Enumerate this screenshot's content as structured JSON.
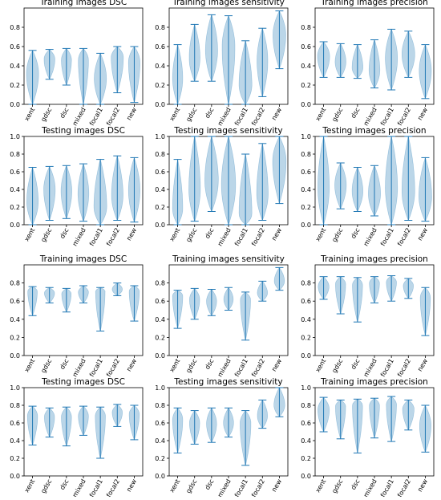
{
  "style": {
    "violin_fill": "#1f77b4",
    "violin_fill_opacity": 0.3,
    "line_color": "#1f77b4",
    "axis_color": "#000000"
  },
  "chart_data": [
    {
      "type": "violin",
      "title": "Training images DSC",
      "ylim": [
        0,
        1
      ],
      "ytick_labels": [
        "0.0",
        "0.2",
        "0.4",
        "0.6",
        "0.8"
      ],
      "categories": [
        "xent",
        "gdsc",
        "dsc",
        "mixed",
        "focal1",
        "focal2",
        "new"
      ],
      "series": [
        {
          "min": 0.0,
          "max": 0.56,
          "mode": 0.32,
          "width": 0.36
        },
        {
          "min": 0.26,
          "max": 0.57,
          "mode": 0.47,
          "width": 0.32
        },
        {
          "min": 0.2,
          "max": 0.58,
          "mode": 0.46,
          "width": 0.3
        },
        {
          "min": 0.0,
          "max": 0.58,
          "mode": 0.46,
          "width": 0.3
        },
        {
          "min": 0.0,
          "max": 0.53,
          "mode": 0.27,
          "width": 0.36
        },
        {
          "min": 0.12,
          "max": 0.6,
          "mode": 0.49,
          "width": 0.36
        },
        {
          "min": 0.02,
          "max": 0.6,
          "mode": 0.44,
          "width": 0.34
        }
      ]
    },
    {
      "type": "violin",
      "title": "Training images sensitivity",
      "ylim": [
        0,
        1
      ],
      "ytick_labels": [
        "0.0",
        "0.2",
        "0.4",
        "0.6",
        "0.8"
      ],
      "categories": [
        "xent",
        "gdsc",
        "dsc",
        "mixed",
        "focal1",
        "focal2",
        "new"
      ],
      "series": [
        {
          "min": 0.0,
          "max": 0.62,
          "mode": 0.27,
          "width": 0.3
        },
        {
          "min": 0.24,
          "max": 0.83,
          "mode": 0.48,
          "width": 0.32
        },
        {
          "min": 0.24,
          "max": 0.93,
          "mode": 0.56,
          "width": 0.36
        },
        {
          "min": 0.0,
          "max": 0.92,
          "mode": 0.6,
          "width": 0.38
        },
        {
          "min": 0.0,
          "max": 0.66,
          "mode": 0.2,
          "width": 0.38
        },
        {
          "min": 0.08,
          "max": 0.79,
          "mode": 0.45,
          "width": 0.32
        },
        {
          "min": 0.37,
          "max": 0.97,
          "mode": 0.72,
          "width": 0.38
        }
      ]
    },
    {
      "type": "violin",
      "title": "Training images precision",
      "ylim": [
        0,
        1
      ],
      "ytick_labels": [
        "0.0",
        "0.2",
        "0.4",
        "0.6",
        "0.8"
      ],
      "categories": [
        "xent",
        "gdsc",
        "dsc",
        "mixed",
        "focal1",
        "focal2",
        "new"
      ],
      "series": [
        {
          "min": 0.28,
          "max": 0.65,
          "mode": 0.5,
          "width": 0.36
        },
        {
          "min": 0.28,
          "max": 0.63,
          "mode": 0.44,
          "width": 0.32
        },
        {
          "min": 0.27,
          "max": 0.62,
          "mode": 0.38,
          "width": 0.32
        },
        {
          "min": 0.17,
          "max": 0.67,
          "mode": 0.35,
          "width": 0.32
        },
        {
          "min": 0.15,
          "max": 0.78,
          "mode": 0.48,
          "width": 0.36
        },
        {
          "min": 0.28,
          "max": 0.76,
          "mode": 0.52,
          "width": 0.38
        },
        {
          "min": 0.06,
          "max": 0.62,
          "mode": 0.35,
          "width": 0.36
        }
      ]
    },
    {
      "type": "violin",
      "title": "Testing images DSC",
      "ylim": [
        0,
        1
      ],
      "ytick_labels": [
        "0.0",
        "0.2",
        "0.4",
        "0.6",
        "0.8",
        "1.0"
      ],
      "categories": [
        "xent",
        "gdsc",
        "dsc",
        "mixed",
        "focal1",
        "focal2",
        "new"
      ],
      "series": [
        {
          "min": 0.0,
          "max": 0.65,
          "mode": 0.26,
          "width": 0.34
        },
        {
          "min": 0.05,
          "max": 0.66,
          "mode": 0.4,
          "width": 0.34
        },
        {
          "min": 0.07,
          "max": 0.67,
          "mode": 0.38,
          "width": 0.32
        },
        {
          "min": 0.04,
          "max": 0.69,
          "mode": 0.35,
          "width": 0.32
        },
        {
          "min": 0.0,
          "max": 0.74,
          "mode": 0.2,
          "width": 0.38
        },
        {
          "min": 0.05,
          "max": 0.78,
          "mode": 0.33,
          "width": 0.34
        },
        {
          "min": 0.03,
          "max": 0.76,
          "mode": 0.39,
          "width": 0.34
        }
      ]
    },
    {
      "type": "violin",
      "title": "Testing images sensitivity",
      "ylim": [
        0,
        1
      ],
      "ytick_labels": [
        "0.0",
        "0.2",
        "0.4",
        "0.6",
        "0.8",
        "1.0"
      ],
      "categories": [
        "xent",
        "gdsc",
        "dsc",
        "mixed",
        "focal1",
        "focal2",
        "new"
      ],
      "series": [
        {
          "min": 0.0,
          "max": 0.74,
          "mode": 0.18,
          "width": 0.3
        },
        {
          "min": 0.04,
          "max": 1.0,
          "mode": 0.4,
          "width": 0.34
        },
        {
          "min": 0.15,
          "max": 1.0,
          "mode": 0.5,
          "width": 0.4
        },
        {
          "min": 0.0,
          "max": 1.0,
          "mode": 0.45,
          "width": 0.42
        },
        {
          "min": 0.0,
          "max": 0.8,
          "mode": 0.12,
          "width": 0.38
        },
        {
          "min": 0.05,
          "max": 0.92,
          "mode": 0.35,
          "width": 0.34
        },
        {
          "min": 0.24,
          "max": 1.0,
          "mode": 0.72,
          "width": 0.4
        }
      ]
    },
    {
      "type": "violin",
      "title": "Testing images precision",
      "ylim": [
        0,
        1
      ],
      "ytick_labels": [
        "0.0",
        "0.2",
        "0.4",
        "0.6",
        "0.8",
        "1.0"
      ],
      "categories": [
        "xent",
        "gdsc",
        "dsc",
        "mixed",
        "focal1",
        "focal2",
        "new"
      ],
      "series": [
        {
          "min": 0.0,
          "max": 1.0,
          "mode": 0.42,
          "width": 0.34
        },
        {
          "min": 0.18,
          "max": 0.7,
          "mode": 0.45,
          "width": 0.34
        },
        {
          "min": 0.15,
          "max": 0.65,
          "mode": 0.38,
          "width": 0.32
        },
        {
          "min": 0.1,
          "max": 0.67,
          "mode": 0.35,
          "width": 0.36
        },
        {
          "min": 0.0,
          "max": 1.0,
          "mode": 0.42,
          "width": 0.36
        },
        {
          "min": 0.05,
          "max": 1.0,
          "mode": 0.38,
          "width": 0.38
        },
        {
          "min": 0.04,
          "max": 0.76,
          "mode": 0.32,
          "width": 0.38
        }
      ]
    },
    {
      "type": "violin",
      "title": "Training images DSC",
      "ylim": [
        0,
        1
      ],
      "ytick_labels": [
        "0.0",
        "0.2",
        "0.4",
        "0.6",
        "0.8"
      ],
      "categories": [
        "xent",
        "gdsc",
        "dsc",
        "mixed",
        "focal1",
        "focal2",
        "new"
      ],
      "series": [
        {
          "min": 0.44,
          "max": 0.76,
          "mode": 0.71,
          "width": 0.28
        },
        {
          "min": 0.58,
          "max": 0.75,
          "mode": 0.69,
          "width": 0.3
        },
        {
          "min": 0.48,
          "max": 0.74,
          "mode": 0.68,
          "width": 0.28
        },
        {
          "min": 0.58,
          "max": 0.77,
          "mode": 0.7,
          "width": 0.3
        },
        {
          "min": 0.27,
          "max": 0.75,
          "mode": 0.71,
          "width": 0.28
        },
        {
          "min": 0.66,
          "max": 0.8,
          "mode": 0.73,
          "width": 0.3
        },
        {
          "min": 0.38,
          "max": 0.77,
          "mode": 0.71,
          "width": 0.3
        }
      ]
    },
    {
      "type": "violin",
      "title": "Training images sensitivity",
      "ylim": [
        0,
        1
      ],
      "ytick_labels": [
        "0.0",
        "0.2",
        "0.4",
        "0.6",
        "0.8"
      ],
      "categories": [
        "xent",
        "gdsc",
        "dsc",
        "mixed",
        "focal1",
        "focal2",
        "new"
      ],
      "series": [
        {
          "min": 0.3,
          "max": 0.72,
          "mode": 0.66,
          "width": 0.3
        },
        {
          "min": 0.4,
          "max": 0.74,
          "mode": 0.62,
          "width": 0.3
        },
        {
          "min": 0.44,
          "max": 0.73,
          "mode": 0.6,
          "width": 0.3
        },
        {
          "min": 0.5,
          "max": 0.75,
          "mode": 0.62,
          "width": 0.28
        },
        {
          "min": 0.17,
          "max": 0.7,
          "mode": 0.62,
          "width": 0.3
        },
        {
          "min": 0.6,
          "max": 0.82,
          "mode": 0.69,
          "width": 0.3
        },
        {
          "min": 0.72,
          "max": 0.97,
          "mode": 0.82,
          "width": 0.3
        }
      ]
    },
    {
      "type": "violin",
      "title": "Training images precision",
      "ylim": [
        0,
        1
      ],
      "ytick_labels": [
        "0.0",
        "0.2",
        "0.4",
        "0.6",
        "0.8"
      ],
      "categories": [
        "xent",
        "gdsc",
        "dsc",
        "mixed",
        "focal1",
        "focal2",
        "new"
      ],
      "series": [
        {
          "min": 0.62,
          "max": 0.87,
          "mode": 0.76,
          "width": 0.32
        },
        {
          "min": 0.46,
          "max": 0.87,
          "mode": 0.79,
          "width": 0.3
        },
        {
          "min": 0.37,
          "max": 0.86,
          "mode": 0.78,
          "width": 0.3
        },
        {
          "min": 0.58,
          "max": 0.87,
          "mode": 0.8,
          "width": 0.3
        },
        {
          "min": 0.6,
          "max": 0.88,
          "mode": 0.81,
          "width": 0.3
        },
        {
          "min": 0.63,
          "max": 0.85,
          "mode": 0.77,
          "width": 0.3
        },
        {
          "min": 0.22,
          "max": 0.75,
          "mode": 0.64,
          "width": 0.3
        }
      ]
    },
    {
      "type": "violin",
      "title": "Testing images DSC",
      "ylim": [
        0,
        1
      ],
      "ytick_labels": [
        "0.0",
        "0.2",
        "0.4",
        "0.6",
        "0.8",
        "1.0"
      ],
      "categories": [
        "xent",
        "gdsc",
        "dsc",
        "mixed",
        "focal1",
        "focal2",
        "new"
      ],
      "series": [
        {
          "min": 0.35,
          "max": 0.79,
          "mode": 0.68,
          "width": 0.3
        },
        {
          "min": 0.44,
          "max": 0.77,
          "mode": 0.67,
          "width": 0.3
        },
        {
          "min": 0.34,
          "max": 0.78,
          "mode": 0.67,
          "width": 0.3
        },
        {
          "min": 0.46,
          "max": 0.79,
          "mode": 0.68,
          "width": 0.3
        },
        {
          "min": 0.2,
          "max": 0.78,
          "mode": 0.68,
          "width": 0.3
        },
        {
          "min": 0.56,
          "max": 0.81,
          "mode": 0.72,
          "width": 0.3
        },
        {
          "min": 0.41,
          "max": 0.8,
          "mode": 0.7,
          "width": 0.3
        }
      ]
    },
    {
      "type": "violin",
      "title": "Testing images sensitivity",
      "ylim": [
        0,
        1
      ],
      "ytick_labels": [
        "0.0",
        "0.2",
        "0.4",
        "0.6",
        "0.8",
        "1.0"
      ],
      "categories": [
        "xent",
        "gdsc",
        "dsc",
        "mixed",
        "focal1",
        "focal2",
        "new"
      ],
      "series": [
        {
          "min": 0.26,
          "max": 0.77,
          "mode": 0.64,
          "width": 0.3
        },
        {
          "min": 0.36,
          "max": 0.74,
          "mode": 0.6,
          "width": 0.3
        },
        {
          "min": 0.38,
          "max": 0.77,
          "mode": 0.59,
          "width": 0.3
        },
        {
          "min": 0.44,
          "max": 0.77,
          "mode": 0.6,
          "width": 0.3
        },
        {
          "min": 0.12,
          "max": 0.74,
          "mode": 0.6,
          "width": 0.32
        },
        {
          "min": 0.54,
          "max": 0.86,
          "mode": 0.68,
          "width": 0.3
        },
        {
          "min": 0.67,
          "max": 1.0,
          "mode": 0.8,
          "width": 0.32
        }
      ]
    },
    {
      "type": "violin",
      "title": "Training images precision",
      "ylim": [
        0,
        1
      ],
      "ytick_labels": [
        "0.0",
        "0.2",
        "0.4",
        "0.6",
        "0.8",
        "1.0"
      ],
      "categories": [
        "xent",
        "gdsc",
        "dsc",
        "mixed",
        "focal1",
        "focal2",
        "new"
      ],
      "series": [
        {
          "min": 0.5,
          "max": 0.89,
          "mode": 0.75,
          "width": 0.34
        },
        {
          "min": 0.42,
          "max": 0.86,
          "mode": 0.79,
          "width": 0.3
        },
        {
          "min": 0.26,
          "max": 0.87,
          "mode": 0.8,
          "width": 0.3
        },
        {
          "min": 0.43,
          "max": 0.88,
          "mode": 0.8,
          "width": 0.3
        },
        {
          "min": 0.39,
          "max": 0.9,
          "mode": 0.81,
          "width": 0.3
        },
        {
          "min": 0.52,
          "max": 0.86,
          "mode": 0.76,
          "width": 0.34
        },
        {
          "min": 0.27,
          "max": 0.8,
          "mode": 0.57,
          "width": 0.34
        }
      ]
    }
  ]
}
